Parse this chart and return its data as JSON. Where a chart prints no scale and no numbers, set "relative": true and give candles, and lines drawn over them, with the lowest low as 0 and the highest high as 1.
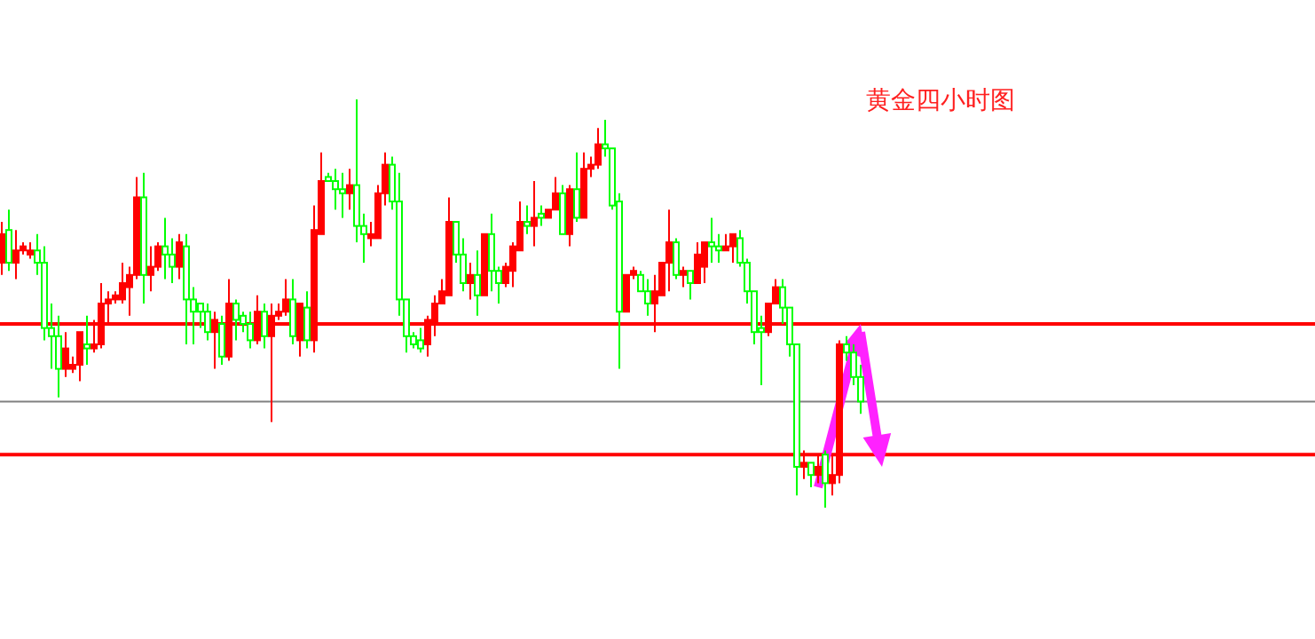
{
  "chart_data": {
    "type": "candlestick",
    "title": "黄金四小时图",
    "relative": true,
    "categories": [
      null,
      null,
      null,
      null,
      null,
      null,
      null,
      null,
      null,
      null,
      null,
      null,
      null,
      null,
      null,
      null,
      null,
      null,
      null,
      null,
      null,
      null,
      null,
      null,
      null,
      null,
      null,
      null,
      null,
      null,
      null,
      null,
      null,
      null,
      null,
      null,
      null,
      null,
      null,
      null,
      null,
      null,
      null,
      null,
      null,
      null,
      null,
      null,
      null,
      null,
      null,
      null,
      null,
      null,
      null,
      null,
      null,
      null,
      null,
      null,
      null,
      null,
      null,
      null,
      null,
      null,
      null,
      null,
      null,
      null,
      null,
      null,
      null,
      null,
      null,
      null,
      null,
      null,
      null,
      null,
      null,
      null,
      null,
      null,
      null,
      null,
      null,
      null,
      null,
      null,
      null,
      null,
      null,
      null,
      null,
      null,
      null,
      null,
      null,
      null,
      null,
      null,
      null,
      null,
      null,
      null,
      null,
      null,
      null,
      null,
      null,
      null,
      null,
      null,
      null,
      null,
      null,
      null,
      null,
      null,
      null,
      null
    ],
    "ohlc": [
      [
        0.6,
        0.7,
        0.57,
        0.67
      ],
      [
        0.68,
        0.73,
        0.58,
        0.6
      ],
      [
        0.6,
        0.68,
        0.56,
        0.63
      ],
      [
        0.63,
        0.65,
        0.62,
        0.64
      ],
      [
        0.62,
        0.65,
        0.61,
        0.63
      ],
      [
        0.63,
        0.67,
        0.57,
        0.6
      ],
      [
        0.6,
        0.64,
        0.41,
        0.44
      ],
      [
        0.44,
        0.5,
        0.34,
        0.42
      ],
      [
        0.42,
        0.47,
        0.27,
        0.34
      ],
      [
        0.34,
        0.43,
        0.32,
        0.39
      ],
      [
        0.34,
        0.37,
        0.33,
        0.35
      ],
      [
        0.35,
        0.43,
        0.31,
        0.43
      ],
      [
        0.4,
        0.47,
        0.35,
        0.39
      ],
      [
        0.39,
        0.46,
        0.38,
        0.4
      ],
      [
        0.4,
        0.55,
        0.39,
        0.5
      ],
      [
        0.5,
        0.53,
        0.45,
        0.51
      ],
      [
        0.51,
        0.53,
        0.5,
        0.52
      ],
      [
        0.51,
        0.6,
        0.5,
        0.55
      ],
      [
        0.54,
        0.59,
        0.47,
        0.57
      ],
      [
        0.57,
        0.81,
        0.56,
        0.76
      ],
      [
        0.76,
        0.82,
        0.5,
        0.57
      ],
      [
        0.57,
        0.64,
        0.53,
        0.59
      ],
      [
        0.59,
        0.65,
        0.58,
        0.64
      ],
      [
        0.64,
        0.71,
        0.56,
        0.62
      ],
      [
        0.62,
        0.66,
        0.55,
        0.59
      ],
      [
        0.59,
        0.67,
        0.56,
        0.65
      ],
      [
        0.64,
        0.67,
        0.4,
        0.51
      ],
      [
        0.51,
        0.54,
        0.4,
        0.48
      ],
      [
        0.5,
        0.5,
        0.44,
        0.48
      ],
      [
        0.48,
        0.5,
        0.41,
        0.43
      ],
      [
        0.43,
        0.48,
        0.34,
        0.46
      ],
      [
        0.45,
        0.47,
        0.35,
        0.37
      ],
      [
        0.37,
        0.56,
        0.36,
        0.5
      ],
      [
        0.5,
        0.51,
        0.41,
        0.46
      ],
      [
        0.47,
        0.48,
        0.43,
        0.45
      ],
      [
        0.45,
        0.48,
        0.39,
        0.41
      ],
      [
        0.41,
        0.52,
        0.4,
        0.48
      ],
      [
        0.48,
        0.5,
        0.39,
        0.42
      ],
      [
        0.42,
        0.5,
        0.21,
        0.47
      ],
      [
        0.47,
        0.5,
        0.46,
        0.48
      ],
      [
        0.48,
        0.56,
        0.47,
        0.51
      ],
      [
        0.51,
        0.56,
        0.4,
        0.42
      ],
      [
        0.41,
        0.5,
        0.37,
        0.5
      ],
      [
        0.49,
        0.53,
        0.39,
        0.41
      ],
      [
        0.41,
        0.74,
        0.38,
        0.68
      ],
      [
        0.67,
        0.87,
        0.67,
        0.8
      ],
      [
        0.81,
        0.82,
        0.8,
        0.8
      ],
      [
        0.8,
        0.83,
        0.73,
        0.78
      ],
      [
        0.78,
        0.82,
        0.71,
        0.77
      ],
      [
        0.77,
        0.83,
        0.73,
        0.79
      ],
      [
        0.79,
        1.0,
        0.65,
        0.69
      ],
      [
        0.69,
        0.72,
        0.6,
        0.67
      ],
      [
        0.66,
        0.7,
        0.64,
        0.67
      ],
      [
        0.66,
        0.79,
        0.66,
        0.77
      ],
      [
        0.77,
        0.87,
        0.74,
        0.84
      ],
      [
        0.84,
        0.86,
        0.73,
        0.75
      ],
      [
        0.75,
        0.82,
        0.47,
        0.51
      ],
      [
        0.51,
        0.51,
        0.38,
        0.42
      ],
      [
        0.42,
        0.43,
        0.39,
        0.4
      ],
      [
        0.41,
        0.44,
        0.38,
        0.39
      ],
      [
        0.4,
        0.47,
        0.37,
        0.46
      ],
      [
        0.45,
        0.52,
        0.42,
        0.5
      ],
      [
        0.5,
        0.56,
        0.5,
        0.53
      ],
      [
        0.52,
        0.76,
        0.52,
        0.7
      ],
      [
        0.7,
        0.7,
        0.6,
        0.62
      ],
      [
        0.62,
        0.66,
        0.53,
        0.55
      ],
      [
        0.55,
        0.6,
        0.51,
        0.57
      ],
      [
        0.57,
        0.63,
        0.47,
        0.52
      ],
      [
        0.52,
        0.67,
        0.52,
        0.67
      ],
      [
        0.67,
        0.72,
        0.53,
        0.58
      ],
      [
        0.58,
        0.59,
        0.5,
        0.55
      ],
      [
        0.55,
        0.6,
        0.54,
        0.59
      ],
      [
        0.58,
        0.65,
        0.54,
        0.64
      ],
      [
        0.63,
        0.75,
        0.63,
        0.7
      ],
      [
        0.7,
        0.74,
        0.67,
        0.69
      ],
      [
        0.69,
        0.8,
        0.64,
        0.71
      ],
      [
        0.72,
        0.74,
        0.69,
        0.71
      ],
      [
        0.71,
        0.73,
        0.71,
        0.73
      ],
      [
        0.73,
        0.81,
        0.73,
        0.77
      ],
      [
        0.77,
        0.79,
        0.67,
        0.67
      ],
      [
        0.67,
        0.79,
        0.64,
        0.78
      ],
      [
        0.78,
        0.87,
        0.7,
        0.71
      ],
      [
        0.71,
        0.87,
        0.71,
        0.83
      ],
      [
        0.83,
        0.86,
        0.81,
        0.84
      ],
      [
        0.84,
        0.93,
        0.83,
        0.89
      ],
      [
        0.89,
        0.95,
        0.86,
        0.88
      ],
      [
        0.88,
        0.88,
        0.73,
        0.74
      ],
      [
        0.75,
        0.77,
        0.34,
        0.48
      ],
      [
        0.48,
        0.57,
        0.48,
        0.57
      ],
      [
        0.57,
        0.59,
        0.56,
        0.58
      ],
      [
        0.57,
        0.58,
        0.53,
        0.53
      ],
      [
        0.53,
        0.56,
        0.47,
        0.5
      ],
      [
        0.5,
        0.57,
        0.43,
        0.53
      ],
      [
        0.52,
        0.6,
        0.52,
        0.6
      ],
      [
        0.6,
        0.73,
        0.53,
        0.65
      ],
      [
        0.65,
        0.66,
        0.56,
        0.57
      ],
      [
        0.57,
        0.59,
        0.54,
        0.58
      ],
      [
        0.58,
        0.58,
        0.51,
        0.55
      ],
      [
        0.55,
        0.65,
        0.55,
        0.62
      ],
      [
        0.59,
        0.65,
        0.55,
        0.65
      ],
      [
        0.65,
        0.71,
        0.6,
        0.64
      ],
      [
        0.64,
        0.67,
        0.6,
        0.63
      ],
      [
        0.63,
        0.67,
        0.63,
        0.64
      ],
      [
        0.64,
        0.67,
        0.6,
        0.67
      ],
      [
        0.66,
        0.68,
        0.59,
        0.6
      ],
      [
        0.6,
        0.61,
        0.5,
        0.53
      ],
      [
        0.53,
        0.53,
        0.4,
        0.43
      ],
      [
        0.44,
        0.47,
        0.3,
        0.43
      ],
      [
        0.43,
        0.5,
        0.42,
        0.5
      ],
      [
        0.5,
        0.56,
        0.5,
        0.54
      ],
      [
        0.54,
        0.56,
        0.45,
        0.49
      ],
      [
        0.49,
        0.49,
        0.37,
        0.4
      ],
      [
        0.4,
        0.4,
        0.03,
        0.1
      ],
      [
        0.1,
        0.14,
        0.07,
        0.11
      ],
      [
        0.11,
        0.11,
        0.05,
        0.08
      ],
      [
        0.08,
        0.13,
        0.06,
        0.1
      ],
      [
        0.13,
        0.14,
        0.0,
        0.06
      ],
      [
        0.06,
        0.13,
        0.03,
        0.08
      ],
      [
        0.08,
        0.41,
        0.06,
        0.4
      ],
      [
        0.4,
        0.42,
        0.36,
        0.38
      ],
      [
        0.38,
        0.4,
        0.3,
        0.32
      ],
      [
        0.32,
        0.35,
        0.23,
        0.26
      ]
    ],
    "ref_lines": [
      {
        "axis": "y",
        "value": 0.45,
        "color": "#ff0000"
      },
      {
        "axis": "y",
        "value": 0.26,
        "color": "#808080"
      },
      {
        "axis": "y",
        "value": 0.13,
        "color": "#ff0000"
      }
    ]
  }
}
